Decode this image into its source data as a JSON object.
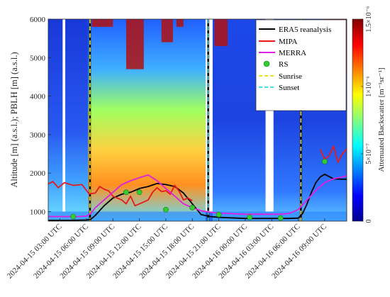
{
  "chart_data": {
    "type": "heatmap",
    "ylabel": "Altitude [m] (a.s.l.); PBLH [m] (a.s.l.)",
    "ylim": [
      750,
      6000
    ],
    "yticks": [
      1000,
      2000,
      3000,
      4000,
      5000,
      6000
    ],
    "xlim": [
      "2024-04-15 01:40",
      "2024-04-16 11:20"
    ],
    "xticks": [
      "2024-04-15 03:00 UTC",
      "2024-04-15 06:00 UTC",
      "2024-04-15 09:00 UTC",
      "2024-04-15 12:00 UTC",
      "2024-04-15 15:00 UTC",
      "2024-04-15 18:00 UTC",
      "2024-04-15 21:00 UTC",
      "2024-04-16 00:00 UTC",
      "2024-04-16 03:00 UTC",
      "2024-04-16 06:00 UTC",
      "2024-04-16 09:00 UTC"
    ],
    "xtick_hours": [
      3,
      6,
      9,
      12,
      15,
      18,
      21,
      24,
      27,
      30,
      33
    ],
    "x_unit": "hours since 2024-04-15 00:00 UTC",
    "colorbar": {
      "label": "Attenuated Backscatter [m⁻¹sr⁻¹]",
      "range": [
        0,
        1.5e-06
      ],
      "ticks": [
        {
          "value": 0,
          "label": "0"
        },
        {
          "value": 5e-07,
          "label": "5×10⁻⁷"
        },
        {
          "value": 1e-06,
          "label": "1×10⁻⁶"
        },
        {
          "value": 1.5e-06,
          "label": "1.5×10⁻⁶"
        }
      ],
      "colormap": "jet"
    },
    "legend_position": "top-right",
    "series": [
      {
        "name": "ERA5 reanalysis",
        "color": "#000000",
        "style": "solid",
        "x": [
          1.7,
          3,
          4,
          5,
          6,
          6.5,
          7,
          8,
          9,
          10,
          11,
          12,
          13,
          14,
          15,
          16,
          17,
          18,
          19,
          20,
          21,
          22,
          23,
          24,
          25,
          26,
          27,
          28,
          29,
          30,
          30.5,
          31,
          31.5,
          32,
          32.5,
          33,
          34,
          35,
          35.5
        ],
        "y": [
          770,
          770,
          770,
          775,
          780,
          800,
          900,
          1150,
          1350,
          1450,
          1500,
          1600,
          1650,
          1730,
          1700,
          1650,
          1480,
          1200,
          920,
          870,
          850,
          840,
          830,
          820,
          820,
          820,
          820,
          820,
          820,
          830,
          950,
          1200,
          1500,
          1750,
          1900,
          1970,
          1850,
          1840,
          1840
        ]
      },
      {
        "name": "MIPA",
        "color": "#e41a1c",
        "style": "solid",
        "x": [
          1.7,
          2.2,
          2.8,
          3.5,
          4.5,
          5.5,
          6.3,
          7,
          7.5,
          8,
          8.5,
          9,
          9.5,
          10,
          10.5,
          11,
          11.5,
          12,
          12.5,
          13,
          13.5,
          14,
          14.5,
          15,
          15.5,
          16,
          16.5,
          17,
          17.5,
          18
        ],
        "y": [
          1720,
          1780,
          1620,
          1750,
          1680,
          1700,
          1460,
          1480,
          1650,
          1580,
          1540,
          1400,
          1350,
          1300,
          1200,
          1400,
          1150,
          1200,
          1250,
          1300,
          1500,
          1620,
          1520,
          1540,
          1450,
          1680,
          1530,
          1300,
          1350,
          1280
        ]
      },
      {
        "name": "MIPA",
        "color": "#e41a1c",
        "style": "solid",
        "x": [
          32.5,
          33,
          33.5,
          34,
          34.5,
          35,
          35.5
        ],
        "y": [
          2620,
          2350,
          2450,
          2700,
          2280,
          2500,
          2620
        ]
      },
      {
        "name": "MERRA",
        "color": "#e020e0",
        "style": "solid",
        "x": [
          1.7,
          3,
          5,
          6,
          6.5,
          7,
          8,
          9,
          10,
          11,
          12,
          13,
          14,
          15,
          16,
          17,
          18,
          19,
          20,
          21,
          22,
          23,
          24,
          25,
          26,
          27,
          28,
          29,
          30,
          31,
          32,
          33,
          34,
          35,
          35.5
        ],
        "y": [
          870,
          870,
          870,
          880,
          950,
          1100,
          1300,
          1500,
          1700,
          1800,
          1880,
          1950,
          1800,
          1600,
          1400,
          1200,
          1100,
          1020,
          980,
          960,
          950,
          940,
          930,
          930,
          930,
          930,
          930,
          950,
          1050,
          1300,
          1550,
          1750,
          1850,
          1900,
          1930
        ]
      }
    ],
    "rs_points": {
      "name": "RS",
      "color": "#33cc33",
      "x": [
        4.5,
        10.5,
        12,
        15,
        18,
        21,
        24.5,
        28,
        33
      ],
      "y": [
        870,
        1500,
        1500,
        1050,
        1100,
        920,
        850,
        830,
        2300
      ]
    },
    "vertical_lines": [
      {
        "name": "Sunrise",
        "color": "#f0e020",
        "x": [
          6.4,
          30.3
        ]
      },
      {
        "name": "Sunset",
        "color": "#40e0f0",
        "x": [
          19.8
        ]
      }
    ],
    "data_gaps": [
      [
        3.3,
        3.6
      ],
      [
        19.5,
        20.3
      ],
      [
        26.3,
        27.2
      ]
    ]
  }
}
